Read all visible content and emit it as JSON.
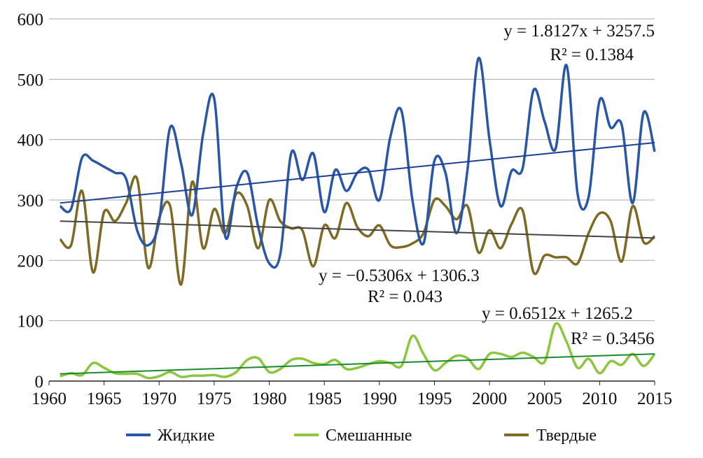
{
  "chart_data": {
    "type": "line",
    "title": "",
    "xlabel": "",
    "ylabel": "",
    "xlim": [
      1960,
      2015
    ],
    "ylim": [
      0,
      600
    ],
    "grid": true,
    "legend_position": "bottom",
    "x_ticks": [
      "1960",
      "1965",
      "1970",
      "1975",
      "1980",
      "1985",
      "1990",
      "1995",
      "2000",
      "2005",
      "2010",
      "2015"
    ],
    "y_ticks": [
      "0",
      "100",
      "200",
      "300",
      "400",
      "500",
      "600"
    ],
    "x": [
      1961,
      1962,
      1963,
      1964,
      1965,
      1966,
      1967,
      1968,
      1969,
      1970,
      1971,
      1972,
      1973,
      1974,
      1975,
      1976,
      1977,
      1978,
      1979,
      1980,
      1981,
      1982,
      1983,
      1984,
      1985,
      1986,
      1987,
      1988,
      1989,
      1990,
      1991,
      1992,
      1993,
      1994,
      1995,
      1996,
      1997,
      1998,
      1999,
      2000,
      2001,
      2002,
      2003,
      2004,
      2005,
      2006,
      2007,
      2008,
      2009,
      2010,
      2011,
      2012,
      2013,
      2014,
      2015
    ],
    "series": [
      {
        "name": "Жидкие",
        "color": "#2a56a6",
        "trend_color": "#1d3f96",
        "values": [
          290,
          285,
          370,
          365,
          355,
          345,
          335,
          250,
          225,
          265,
          420,
          360,
          275,
          410,
          468,
          240,
          320,
          345,
          255,
          195,
          210,
          378,
          333,
          377,
          280,
          350,
          315,
          345,
          350,
          300,
          405,
          448,
          300,
          228,
          365,
          345,
          245,
          350,
          535,
          400,
          290,
          348,
          352,
          482,
          430,
          385,
          523,
          310,
          305,
          465,
          420,
          425,
          295,
          445,
          380
        ],
        "trend": {
          "start": 295,
          "end": 395
        },
        "equation": "y = 1.8127x + 3257.5",
        "r2": "R² = 0.1384"
      },
      {
        "name": "Смешанные",
        "color": "#8cc63f",
        "trend_color": "#1a8a2e",
        "values": [
          8,
          13,
          10,
          30,
          22,
          13,
          12,
          12,
          5,
          8,
          15,
          7,
          9,
          9,
          10,
          7,
          15,
          35,
          38,
          15,
          20,
          35,
          37,
          30,
          28,
          35,
          20,
          22,
          28,
          33,
          30,
          25,
          75,
          45,
          18,
          30,
          42,
          38,
          20,
          45,
          45,
          40,
          47,
          40,
          32,
          95,
          65,
          22,
          37,
          13,
          33,
          27,
          45,
          25,
          45
        ],
        "trend": {
          "start": 12,
          "end": 45
        },
        "equation": "y = 0.6512x + 1265.2",
        "r2": "R² = 0.3456"
      },
      {
        "name": "Твердые",
        "color": "#7f6a25",
        "trend_color": "#444444",
        "values": [
          235,
          225,
          315,
          180,
          280,
          265,
          295,
          335,
          188,
          270,
          290,
          160,
          330,
          220,
          285,
          245,
          310,
          290,
          220,
          300,
          265,
          253,
          250,
          190,
          258,
          237,
          295,
          255,
          240,
          258,
          225,
          222,
          228,
          245,
          300,
          290,
          268,
          290,
          213,
          250,
          220,
          260,
          283,
          180,
          208,
          205,
          205,
          195,
          245,
          278,
          265,
          198,
          290,
          230,
          240
        ],
        "trend": {
          "start": 265,
          "end": 237
        },
        "equation": "y = −0.5306x + 1306.3",
        "r2": "R² = 0.043"
      }
    ]
  }
}
